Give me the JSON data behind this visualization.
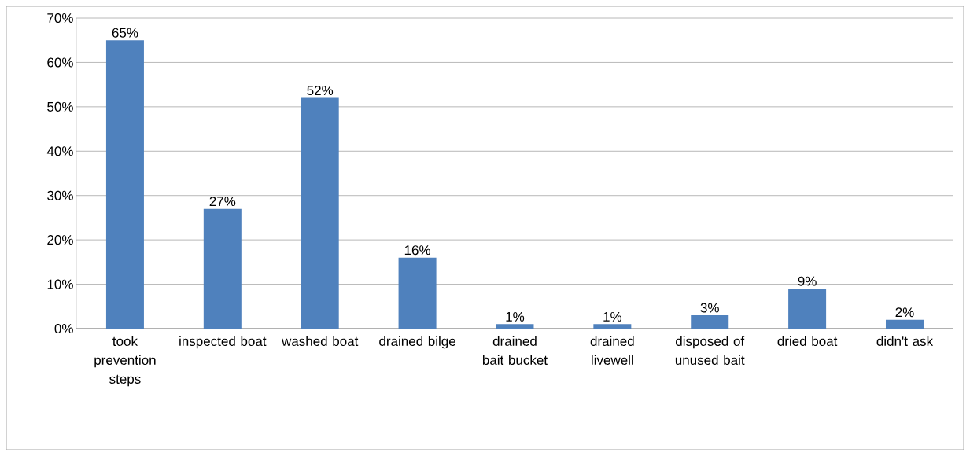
{
  "chart_data": {
    "type": "bar",
    "categories": [
      "took prevention steps",
      "inspected boat",
      "washed boat",
      "drained bilge",
      "drained bait bucket",
      "drained livewell",
      "disposed of unused bait",
      "dried boat",
      "didn't ask"
    ],
    "values": [
      65,
      27,
      52,
      16,
      1,
      1,
      3,
      9,
      2
    ],
    "color": "#4f81bd",
    "ylim": [
      0,
      70
    ],
    "yticks": [
      {
        "value": 0,
        "label": "0%"
      },
      {
        "value": 10,
        "label": "10%"
      },
      {
        "value": 20,
        "label": "20%"
      },
      {
        "value": 30,
        "label": "30%"
      },
      {
        "value": 40,
        "label": "40%"
      },
      {
        "value": 50,
        "label": "50%"
      },
      {
        "value": 60,
        "label": "60%"
      },
      {
        "value": 70,
        "label": "70%"
      }
    ],
    "grid": "y",
    "data_labels": true,
    "value_labels": [
      "65%",
      "27%",
      "52%",
      "16%",
      "1%",
      "1%",
      "3%",
      "9%",
      "2%"
    ]
  }
}
